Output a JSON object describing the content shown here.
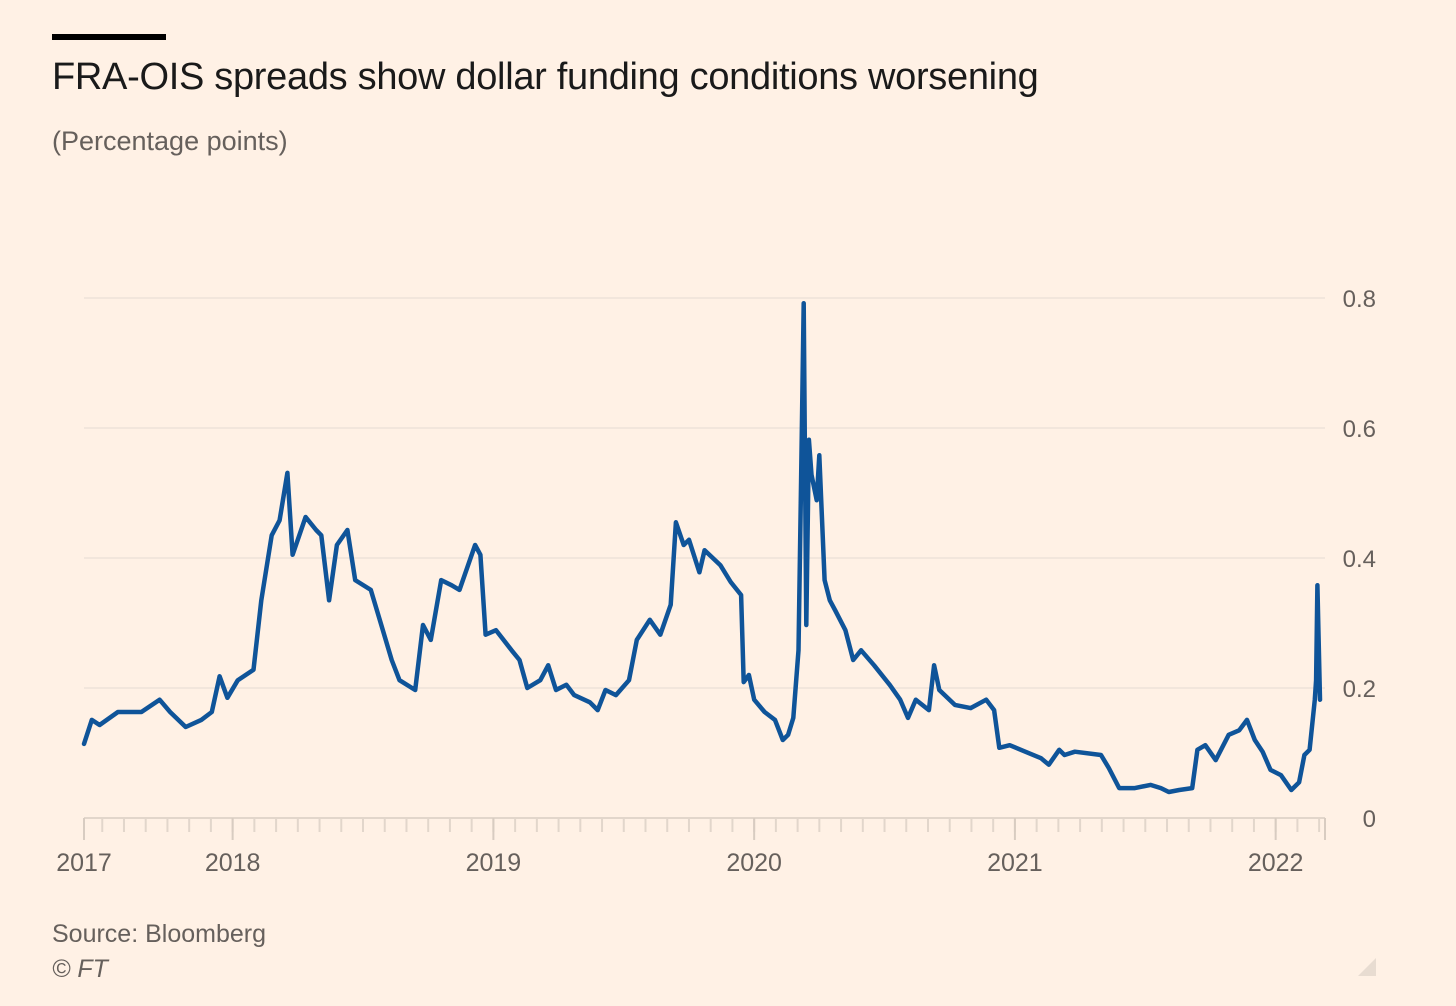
{
  "chart_data": {
    "type": "line",
    "title": "FRA-OIS spreads show dollar funding conditions worsening",
    "subtitle": "(Percentage points)",
    "xlabel": "",
    "ylabel": "(Percentage points)",
    "xlim": [
      2017.43,
      2022.17
    ],
    "ylim": [
      0,
      0.8
    ],
    "grid": true,
    "y_ticks": [
      {
        "value": 0,
        "label": "0"
      },
      {
        "value": 0.2,
        "label": "0.2"
      },
      {
        "value": 0.4,
        "label": "0.4"
      },
      {
        "value": 0.6,
        "label": "0.6"
      },
      {
        "value": 0.8,
        "label": "0.8"
      }
    ],
    "x_ticks": [
      {
        "value": 2017.43,
        "label": "2017"
      },
      {
        "value": 2018,
        "label": "2018"
      },
      {
        "value": 2019,
        "label": "2019"
      },
      {
        "value": 2020,
        "label": "2020"
      },
      {
        "value": 2021,
        "label": "2021"
      },
      {
        "value": 2022,
        "label": "2022"
      }
    ],
    "series": [
      {
        "name": "FRA-OIS spread",
        "color": "#0F5499",
        "points": [
          [
            2017.43,
            0.114
          ],
          [
            2017.46,
            0.151
          ],
          [
            2017.49,
            0.143
          ],
          [
            2017.56,
            0.163
          ],
          [
            2017.65,
            0.163
          ],
          [
            2017.72,
            0.182
          ],
          [
            2017.76,
            0.163
          ],
          [
            2017.82,
            0.14
          ],
          [
            2017.88,
            0.151
          ],
          [
            2017.92,
            0.163
          ],
          [
            2017.95,
            0.218
          ],
          [
            2017.98,
            0.185
          ],
          [
            2018.02,
            0.212
          ],
          [
            2018.08,
            0.228
          ],
          [
            2018.11,
            0.335
          ],
          [
            2018.15,
            0.435
          ],
          [
            2018.18,
            0.458
          ],
          [
            2018.21,
            0.531
          ],
          [
            2018.23,
            0.405
          ],
          [
            2018.28,
            0.463
          ],
          [
            2018.32,
            0.443
          ],
          [
            2018.34,
            0.435
          ],
          [
            2018.37,
            0.335
          ],
          [
            2018.4,
            0.42
          ],
          [
            2018.44,
            0.443
          ],
          [
            2018.47,
            0.366
          ],
          [
            2018.53,
            0.351
          ],
          [
            2018.57,
            0.297
          ],
          [
            2018.61,
            0.243
          ],
          [
            2018.64,
            0.212
          ],
          [
            2018.7,
            0.197
          ],
          [
            2018.73,
            0.297
          ],
          [
            2018.76,
            0.274
          ],
          [
            2018.8,
            0.366
          ],
          [
            2018.84,
            0.358
          ],
          [
            2018.87,
            0.351
          ],
          [
            2018.93,
            0.42
          ],
          [
            2018.95,
            0.405
          ],
          [
            2018.97,
            0.282
          ],
          [
            2019.01,
            0.289
          ],
          [
            2019.07,
            0.258
          ],
          [
            2019.1,
            0.243
          ],
          [
            2019.13,
            0.2
          ],
          [
            2019.18,
            0.212
          ],
          [
            2019.21,
            0.235
          ],
          [
            2019.24,
            0.197
          ],
          [
            2019.28,
            0.205
          ],
          [
            2019.31,
            0.189
          ],
          [
            2019.37,
            0.178
          ],
          [
            2019.4,
            0.166
          ],
          [
            2019.43,
            0.197
          ],
          [
            2019.47,
            0.189
          ],
          [
            2019.52,
            0.212
          ],
          [
            2019.55,
            0.274
          ],
          [
            2019.6,
            0.305
          ],
          [
            2019.64,
            0.282
          ],
          [
            2019.68,
            0.328
          ],
          [
            2019.7,
            0.455
          ],
          [
            2019.73,
            0.42
          ],
          [
            2019.75,
            0.428
          ],
          [
            2019.79,
            0.378
          ],
          [
            2019.81,
            0.412
          ],
          [
            2019.87,
            0.389
          ],
          [
            2019.91,
            0.363
          ],
          [
            2019.95,
            0.343
          ],
          [
            2019.96,
            0.209
          ],
          [
            2019.98,
            0.22
          ],
          [
            2020.0,
            0.182
          ],
          [
            2020.04,
            0.163
          ],
          [
            2020.08,
            0.151
          ],
          [
            2020.11,
            0.12
          ],
          [
            2020.13,
            0.128
          ],
          [
            2020.15,
            0.154
          ],
          [
            2020.17,
            0.258
          ],
          [
            2020.18,
            0.52
          ],
          [
            2020.19,
            0.792
          ],
          [
            2020.2,
            0.297
          ],
          [
            2020.21,
            0.582
          ],
          [
            2020.22,
            0.528
          ],
          [
            2020.24,
            0.489
          ],
          [
            2020.25,
            0.558
          ],
          [
            2020.27,
            0.366
          ],
          [
            2020.29,
            0.335
          ],
          [
            2020.31,
            0.32
          ],
          [
            2020.35,
            0.289
          ],
          [
            2020.38,
            0.243
          ],
          [
            2020.41,
            0.258
          ],
          [
            2020.46,
            0.235
          ],
          [
            2020.52,
            0.205
          ],
          [
            2020.56,
            0.182
          ],
          [
            2020.59,
            0.154
          ],
          [
            2020.62,
            0.182
          ],
          [
            2020.67,
            0.166
          ],
          [
            2020.69,
            0.235
          ],
          [
            2020.71,
            0.197
          ],
          [
            2020.77,
            0.174
          ],
          [
            2020.83,
            0.169
          ],
          [
            2020.89,
            0.182
          ],
          [
            2020.92,
            0.166
          ],
          [
            2020.94,
            0.108
          ],
          [
            2020.98,
            0.112
          ],
          [
            2021.04,
            0.102
          ],
          [
            2021.1,
            0.092
          ],
          [
            2021.13,
            0.082
          ],
          [
            2021.17,
            0.105
          ],
          [
            2021.19,
            0.097
          ],
          [
            2021.23,
            0.102
          ],
          [
            2021.33,
            0.097
          ],
          [
            2021.36,
            0.077
          ],
          [
            2021.4,
            0.046
          ],
          [
            2021.46,
            0.046
          ],
          [
            2021.52,
            0.051
          ],
          [
            2021.56,
            0.046
          ],
          [
            2021.59,
            0.04
          ],
          [
            2021.63,
            0.043
          ],
          [
            2021.68,
            0.046
          ],
          [
            2021.7,
            0.105
          ],
          [
            2021.73,
            0.112
          ],
          [
            2021.77,
            0.089
          ],
          [
            2021.82,
            0.128
          ],
          [
            2021.86,
            0.135
          ],
          [
            2021.89,
            0.151
          ],
          [
            2021.92,
            0.12
          ],
          [
            2021.95,
            0.102
          ],
          [
            2021.98,
            0.074
          ],
          [
            2022.02,
            0.066
          ],
          [
            2022.06,
            0.043
          ],
          [
            2022.09,
            0.055
          ],
          [
            2022.11,
            0.097
          ],
          [
            2022.13,
            0.105
          ],
          [
            2022.15,
            0.182
          ],
          [
            2022.155,
            0.212
          ],
          [
            2022.16,
            0.358
          ],
          [
            2022.17,
            0.182
          ]
        ]
      }
    ],
    "source": "Source: Bloomberg",
    "credit": "© FT",
    "colors": {
      "background": "#FFF1E5",
      "line": "#0F5499",
      "grid": "#ede3d9",
      "axis_text": "#66605c"
    }
  }
}
